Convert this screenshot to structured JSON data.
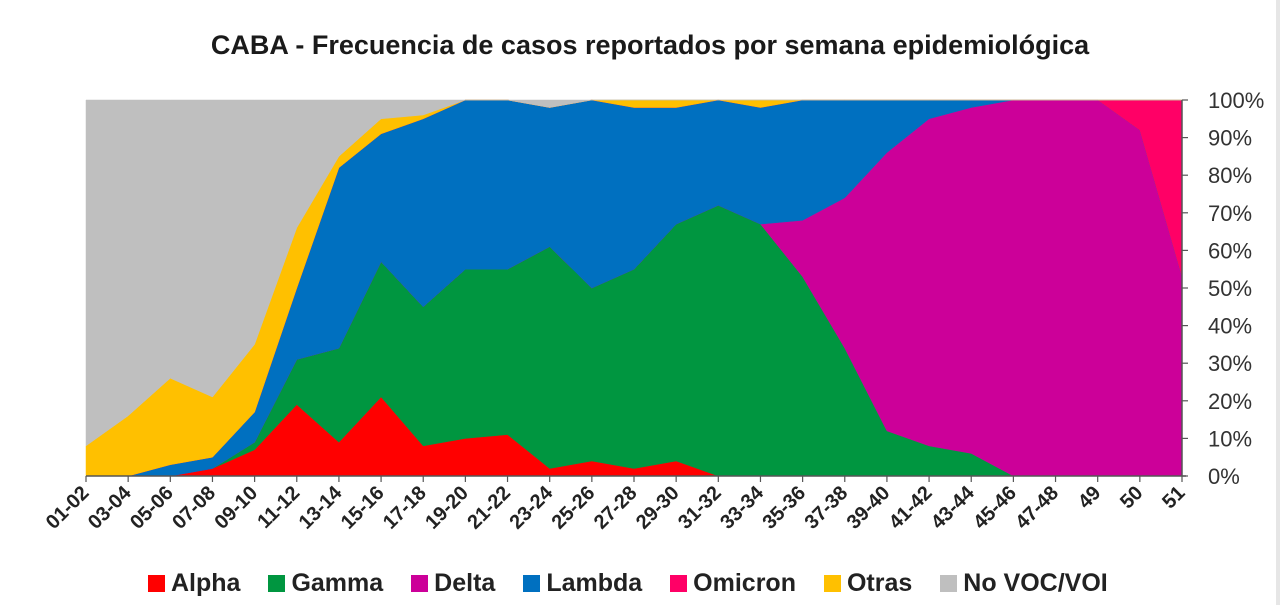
{
  "chart_data": {
    "type": "area",
    "stacked": true,
    "percent": true,
    "title": "CABA - Frecuencia de casos reportados por semana epidemiológica",
    "x": [
      "01-02",
      "03-04",
      "05-06",
      "07-08",
      "09-10",
      "11-12",
      "13-14",
      "15-16",
      "17-18",
      "19-20",
      "21-22",
      "23-24",
      "25-26",
      "27-28",
      "29-30",
      "31-32",
      "33-34",
      "35-36",
      "37-38",
      "39-40",
      "41-42",
      "43-44",
      "45-46",
      "47-48",
      "49",
      "50",
      "51"
    ],
    "y_ticks": [
      "0%",
      "10%",
      "20%",
      "30%",
      "40%",
      "50%",
      "60%",
      "70%",
      "80%",
      "90%",
      "100%"
    ],
    "ylim": [
      0,
      100
    ],
    "y_axis_side": "right",
    "legend_position": "bottom",
    "series": [
      {
        "name": "Alpha",
        "color": "#ff0000",
        "values": [
          0,
          0,
          0,
          2,
          7,
          19,
          9,
          21,
          8,
          10,
          11,
          2,
          4,
          2,
          4,
          0,
          0,
          0,
          0,
          0,
          0,
          0,
          0,
          0,
          0,
          0,
          0
        ]
      },
      {
        "name": "Gamma",
        "color": "#009640",
        "values": [
          0,
          0,
          0,
          0,
          2,
          12,
          25,
          36,
          37,
          45,
          44,
          59,
          46,
          53,
          63,
          72,
          67,
          53,
          34,
          12,
          8,
          6,
          0,
          0,
          0,
          0,
          0
        ]
      },
      {
        "name": "Delta",
        "color": "#cc0099",
        "values": [
          0,
          0,
          0,
          0,
          0,
          0,
          0,
          0,
          0,
          0,
          0,
          0,
          0,
          0,
          0,
          0,
          0,
          15,
          40,
          74,
          87,
          92,
          100,
          100,
          100,
          92,
          53
        ]
      },
      {
        "name": "Lambda",
        "color": "#0070c0",
        "values": [
          0,
          0,
          3,
          3,
          8,
          19,
          48,
          34,
          50,
          45,
          45,
          37,
          50,
          43,
          31,
          28,
          31,
          32,
          26,
          14,
          5,
          2,
          0,
          0,
          0,
          0,
          0
        ]
      },
      {
        "name": "Omicron",
        "color": "#ff0066",
        "values": [
          0,
          0,
          0,
          0,
          0,
          0,
          0,
          0,
          0,
          0,
          0,
          0,
          0,
          0,
          0,
          0,
          0,
          0,
          0,
          0,
          0,
          0,
          0,
          0,
          0,
          8,
          47
        ]
      },
      {
        "name": "Otras",
        "color": "#ffc000",
        "values": [
          8,
          16,
          23,
          16,
          18,
          16,
          3,
          4,
          1,
          0,
          0,
          0,
          0,
          2,
          2,
          0,
          2,
          0,
          0,
          0,
          0,
          0,
          0,
          0,
          0,
          0,
          0
        ]
      },
      {
        "name": "No VOC/VOI",
        "color": "#bfbfbf",
        "values": [
          92,
          84,
          74,
          79,
          65,
          34,
          15,
          5,
          4,
          0,
          0,
          2,
          0,
          0,
          0,
          0,
          0,
          0,
          0,
          0,
          0,
          0,
          0,
          0,
          0,
          0,
          0
        ]
      }
    ]
  }
}
